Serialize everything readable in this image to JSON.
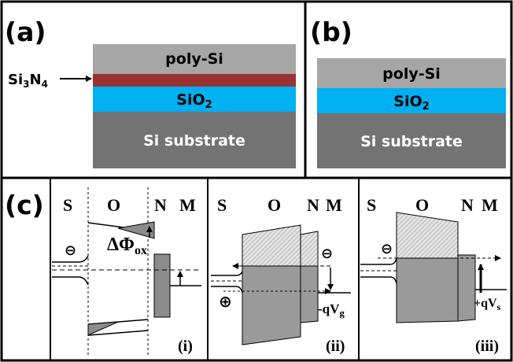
{
  "panel_a": {
    "tag": "(a)",
    "layers": {
      "poly_si": "poly-Si",
      "sio2": "SiO",
      "sio2_sub": "2",
      "substrate": "Si substrate"
    },
    "nitride_label": {
      "main": "Si",
      "sub1": "3",
      "mid": "N",
      "sub2": "4"
    },
    "colors": {
      "poly_si": "#a6a6a6",
      "nitride": "#993333",
      "sio2": "#00b0f0",
      "substrate": "#737373"
    }
  },
  "panel_b": {
    "tag": "(b)",
    "layers": {
      "poly_si": "poly-Si",
      "sio2": "SiO",
      "sio2_sub": "2",
      "substrate": "Si substrate"
    }
  },
  "panel_c": {
    "tag": "(c)",
    "sub_panels": [
      {
        "roman": "(i)",
        "header": {
          "s": "S",
          "o": "O",
          "n": "N",
          "m": "M"
        },
        "delta_phi": {
          "main": "ΔΦ",
          "sub": "ox"
        },
        "electron": "⊖"
      },
      {
        "roman": "(ii)",
        "header": {
          "s": "S",
          "o": "O",
          "n": "N",
          "m": "M"
        },
        "voltage": {
          "main": "-qV",
          "sub": "g"
        },
        "electron": "⊖",
        "hole": "⊕"
      },
      {
        "roman": "(iii)",
        "header": {
          "s": "S",
          "o": "O",
          "n": "N",
          "m": "M"
        },
        "voltage": {
          "main": "+qV",
          "sub": "s"
        },
        "electron": "⊖"
      }
    ]
  }
}
